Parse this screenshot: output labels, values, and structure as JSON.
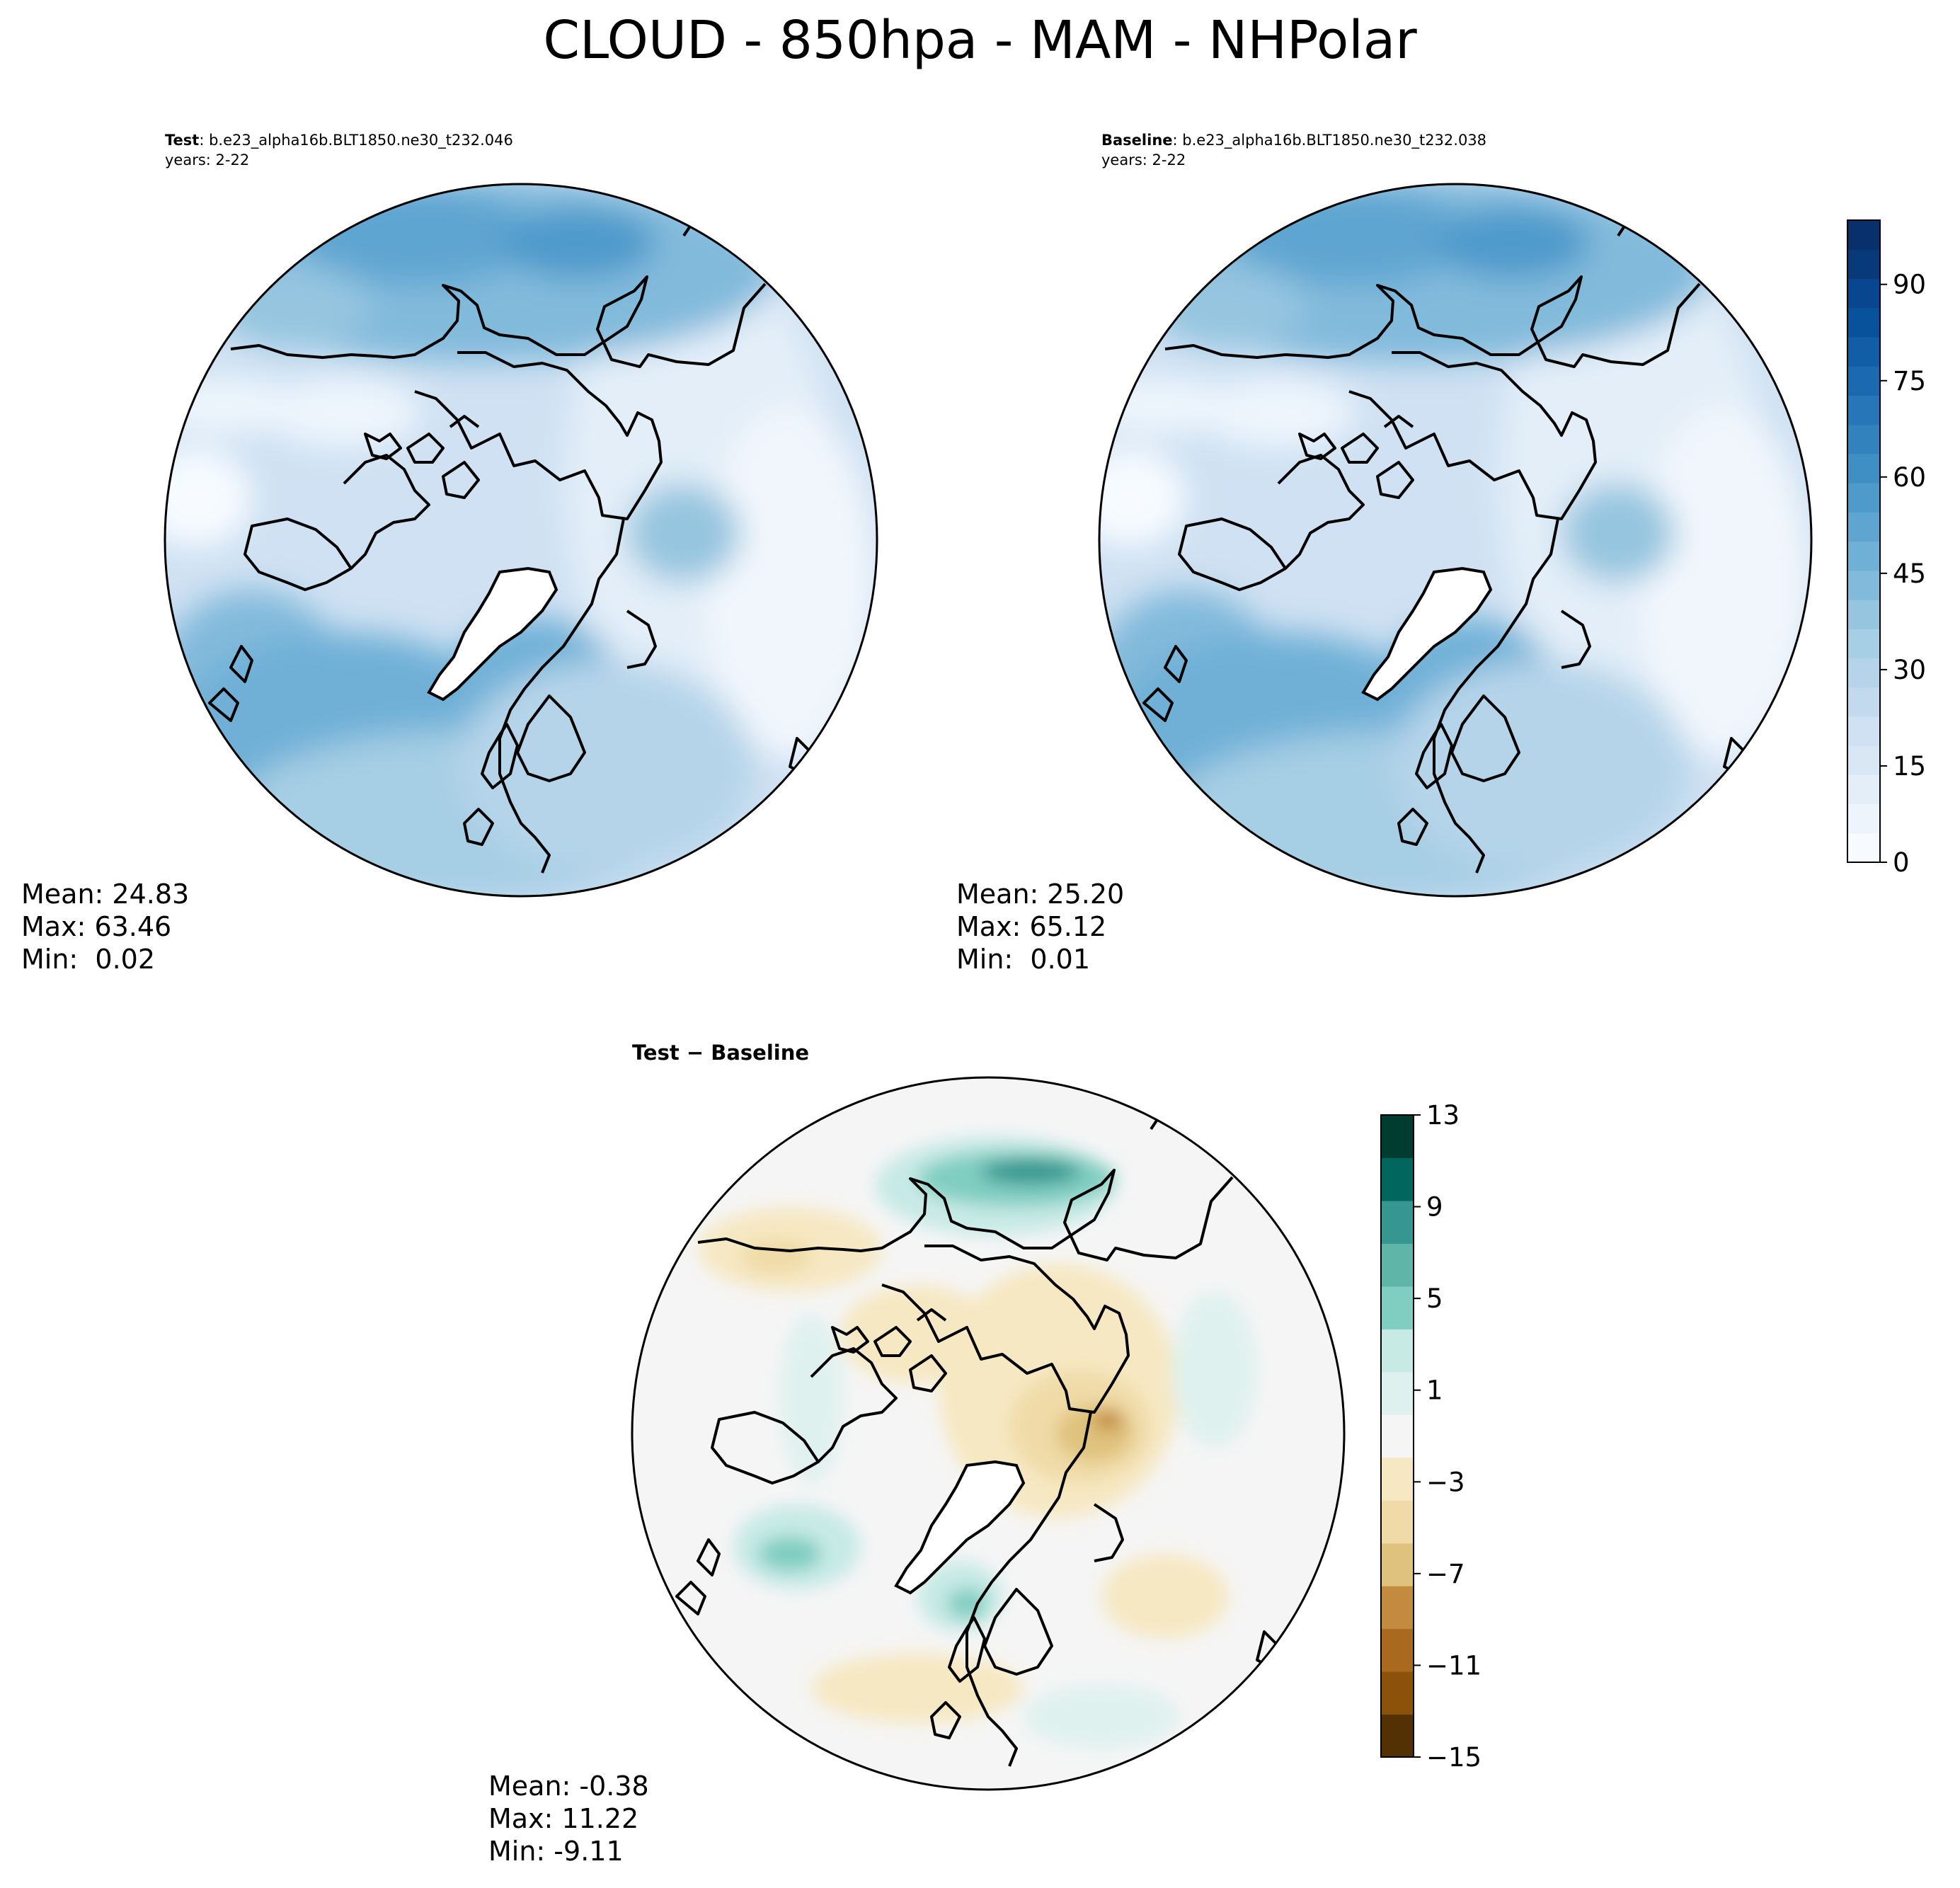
{
  "figure_title": "CLOUD - 850hpa - MAM - NHPolar",
  "panels": [
    {
      "id": "test",
      "label_bold": "Test",
      "label_rest": ": b.e23_alpha16b.BLT1850.ne30_t232.046",
      "years": "years: 2-22",
      "stats": {
        "mean": "Mean: 24.83",
        "max": "Max: 63.46",
        "min": "Min:  0.02"
      }
    },
    {
      "id": "baseline",
      "label_bold": "Baseline",
      "label_rest": ": b.e23_alpha16b.BLT1850.ne30_t232.038",
      "years": "years: 2-22",
      "stats": {
        "mean": "Mean: 25.20",
        "max": "Max: 65.12",
        "min": "Min:  0.01"
      }
    },
    {
      "id": "diff",
      "label": "Test − Baseline",
      "stats": {
        "mean": "Mean: -0.38",
        "max": "Max: 11.22",
        "min": "Min: -9.11"
      }
    }
  ],
  "colorbars": {
    "cloud": {
      "ticks": [
        "0",
        "15",
        "30",
        "45",
        "60",
        "75",
        "90"
      ],
      "tick_values": [
        0,
        15,
        30,
        45,
        60,
        75,
        90
      ],
      "range": [
        0,
        100
      ],
      "colors": [
        "#f7fbff",
        "#edf4fc",
        "#e3eef8",
        "#d9e7f5",
        "#cfe1f2",
        "#c3daee",
        "#b5d4e9",
        "#a6cee4",
        "#95c5df",
        "#82badb",
        "#6fb0d7",
        "#5ea5d1",
        "#4e9acb",
        "#3f8fc4",
        "#3182bd",
        "#2676b8",
        "#1b6aaf",
        "#115ea6",
        "#08529c",
        "#084690",
        "#083a7a",
        "#08306b"
      ]
    },
    "diff": {
      "ticks": [
        "13",
        "9",
        "5",
        "1",
        "−3",
        "−7",
        "−11",
        "−15"
      ],
      "tick_values": [
        13,
        9,
        5,
        1,
        -3,
        -7,
        -11,
        -15
      ],
      "range": [
        -15,
        13
      ],
      "colors": [
        "#543005",
        "#8c510a",
        "#a96a1f",
        "#c38b3f",
        "#dfc27d",
        "#f0dba8",
        "#f6e8c3",
        "#f5f5f5",
        "#dff1ee",
        "#c7eae5",
        "#80cdc1",
        "#5fb5a8",
        "#35978f",
        "#01665e",
        "#003c30"
      ]
    }
  },
  "map_colors": {
    "coastline": "#000000",
    "greenland_masked": "#ffffff"
  }
}
